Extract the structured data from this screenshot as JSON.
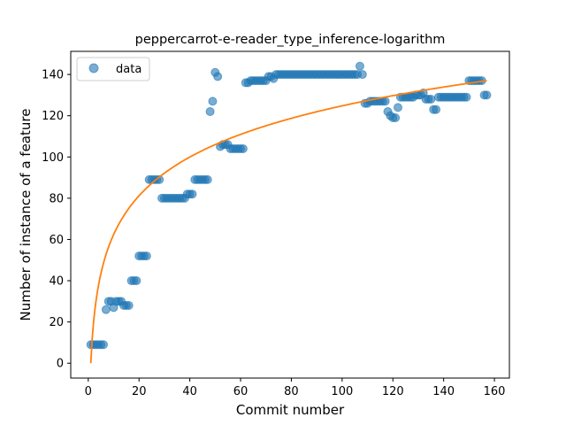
{
  "chart_data": {
    "type": "scatter",
    "title": "peppercarrot-e-reader_type_inference-logarithm",
    "xlabel": "Commit number",
    "ylabel": "Number of instance of a feature",
    "xlim": [
      -6.9,
      165.9
    ],
    "ylim": [
      -7.2,
      151.2
    ],
    "xticks": [
      0,
      20,
      40,
      60,
      80,
      100,
      120,
      140,
      160
    ],
    "yticks": [
      0,
      20,
      40,
      60,
      80,
      100,
      120,
      140
    ],
    "legend": {
      "position": "top-left",
      "entries": [
        "data"
      ]
    },
    "grid": false,
    "colors": {
      "data": "#1f77b4",
      "fit": "#ff7f0e"
    },
    "series": [
      {
        "name": "data",
        "kind": "scatter",
        "points": [
          [
            1,
            9
          ],
          [
            2,
            9
          ],
          [
            3,
            9
          ],
          [
            4,
            9
          ],
          [
            5,
            9
          ],
          [
            6,
            9
          ],
          [
            7,
            26
          ],
          [
            8,
            30
          ],
          [
            9,
            30
          ],
          [
            10,
            27
          ],
          [
            11,
            30
          ],
          [
            12,
            30
          ],
          [
            13,
            30
          ],
          [
            14,
            28
          ],
          [
            15,
            28
          ],
          [
            16,
            28
          ],
          [
            17,
            40
          ],
          [
            18,
            40
          ],
          [
            19,
            40
          ],
          [
            20,
            52
          ],
          [
            21,
            52
          ],
          [
            22,
            52
          ],
          [
            23,
            52
          ],
          [
            24,
            89
          ],
          [
            25,
            89
          ],
          [
            26,
            89
          ],
          [
            27,
            89
          ],
          [
            28,
            89
          ],
          [
            29,
            80
          ],
          [
            30,
            80
          ],
          [
            31,
            80
          ],
          [
            32,
            80
          ],
          [
            33,
            80
          ],
          [
            34,
            80
          ],
          [
            35,
            80
          ],
          [
            36,
            80
          ],
          [
            37,
            80
          ],
          [
            38,
            80
          ],
          [
            39,
            82
          ],
          [
            40,
            82
          ],
          [
            41,
            82
          ],
          [
            42,
            89
          ],
          [
            43,
            89
          ],
          [
            44,
            89
          ],
          [
            45,
            89
          ],
          [
            46,
            89
          ],
          [
            47,
            89
          ],
          [
            48,
            122
          ],
          [
            49,
            127
          ],
          [
            50,
            141
          ],
          [
            51,
            139
          ],
          [
            52,
            105
          ],
          [
            53,
            106
          ],
          [
            54,
            106
          ],
          [
            55,
            106
          ],
          [
            56,
            104
          ],
          [
            57,
            104
          ],
          [
            58,
            104
          ],
          [
            59,
            104
          ],
          [
            60,
            104
          ],
          [
            61,
            104
          ],
          [
            62,
            136
          ],
          [
            63,
            136
          ],
          [
            64,
            137
          ],
          [
            65,
            137
          ],
          [
            66,
            137
          ],
          [
            67,
            137
          ],
          [
            68,
            137
          ],
          [
            69,
            137
          ],
          [
            70,
            137
          ],
          [
            71,
            139
          ],
          [
            72,
            139
          ],
          [
            73,
            138
          ],
          [
            74,
            140
          ],
          [
            75,
            140
          ],
          [
            76,
            140
          ],
          [
            77,
            140
          ],
          [
            78,
            140
          ],
          [
            79,
            140
          ],
          [
            80,
            140
          ],
          [
            81,
            140
          ],
          [
            82,
            140
          ],
          [
            83,
            140
          ],
          [
            84,
            140
          ],
          [
            85,
            140
          ],
          [
            86,
            140
          ],
          [
            87,
            140
          ],
          [
            88,
            140
          ],
          [
            89,
            140
          ],
          [
            90,
            140
          ],
          [
            91,
            140
          ],
          [
            92,
            140
          ],
          [
            93,
            140
          ],
          [
            94,
            140
          ],
          [
            95,
            140
          ],
          [
            96,
            140
          ],
          [
            97,
            140
          ],
          [
            98,
            140
          ],
          [
            99,
            140
          ],
          [
            100,
            140
          ],
          [
            101,
            140
          ],
          [
            102,
            140
          ],
          [
            103,
            140
          ],
          [
            104,
            140
          ],
          [
            105,
            140
          ],
          [
            106,
            140
          ],
          [
            107,
            144
          ],
          [
            108,
            140
          ],
          [
            109,
            126
          ],
          [
            110,
            126
          ],
          [
            111,
            127
          ],
          [
            112,
            127
          ],
          [
            113,
            127
          ],
          [
            114,
            127
          ],
          [
            115,
            127
          ],
          [
            116,
            127
          ],
          [
            117,
            127
          ],
          [
            118,
            122
          ],
          [
            119,
            120
          ],
          [
            120,
            119
          ],
          [
            121,
            119
          ],
          [
            122,
            124
          ],
          [
            123,
            129
          ],
          [
            124,
            129
          ],
          [
            125,
            129
          ],
          [
            126,
            129
          ],
          [
            127,
            129
          ],
          [
            128,
            129
          ],
          [
            129,
            130
          ],
          [
            130,
            130
          ],
          [
            131,
            130
          ],
          [
            132,
            131
          ],
          [
            133,
            128
          ],
          [
            134,
            128
          ],
          [
            135,
            128
          ],
          [
            136,
            123
          ],
          [
            137,
            123
          ],
          [
            138,
            129
          ],
          [
            139,
            129
          ],
          [
            140,
            129
          ],
          [
            141,
            129
          ],
          [
            142,
            129
          ],
          [
            143,
            129
          ],
          [
            144,
            129
          ],
          [
            145,
            129
          ],
          [
            146,
            129
          ],
          [
            147,
            129
          ],
          [
            148,
            129
          ],
          [
            149,
            129
          ],
          [
            150,
            137
          ],
          [
            151,
            137
          ],
          [
            152,
            137
          ],
          [
            153,
            137
          ],
          [
            154,
            137
          ],
          [
            155,
            137
          ],
          [
            156,
            130
          ],
          [
            157,
            130
          ]
        ]
      },
      {
        "kind": "line",
        "model": "logarithmic",
        "x_range": [
          1,
          157
        ],
        "values_at": {
          "1": 0,
          "10": 62,
          "20": 81,
          "40": 99,
          "60": 110,
          "80": 118,
          "100": 124,
          "120": 129,
          "140": 133,
          "157": 137
        }
      }
    ]
  }
}
